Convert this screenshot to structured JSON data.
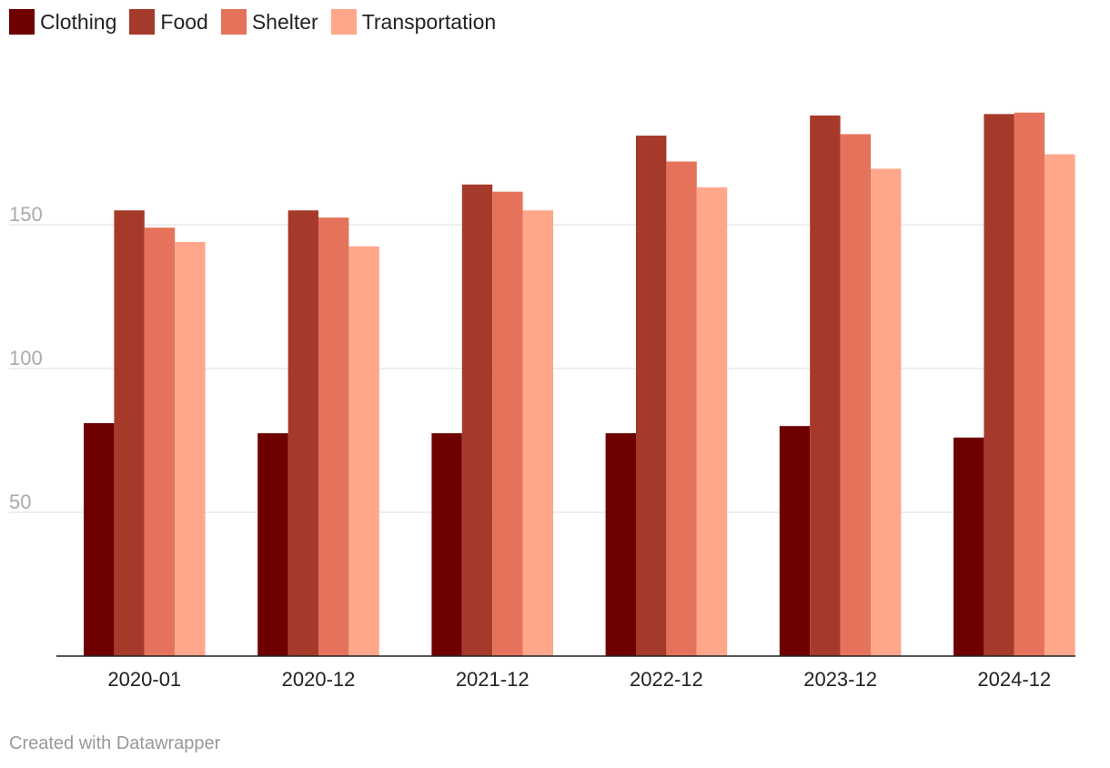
{
  "chart_data": {
    "type": "bar",
    "categories": [
      "2020-01",
      "2020-12",
      "2021-12",
      "2022-12",
      "2023-12",
      "2024-12"
    ],
    "series": [
      {
        "name": "Clothing",
        "color": "#6e0000",
        "values": [
          81,
          77.5,
          77.5,
          77.5,
          80,
          76
        ]
      },
      {
        "name": "Food",
        "color": "#a63a2a",
        "values": [
          155,
          155,
          164,
          181,
          188,
          188.5
        ]
      },
      {
        "name": "Shelter",
        "color": "#e5735b",
        "values": [
          149,
          152.5,
          161.5,
          172,
          181.5,
          189
        ]
      },
      {
        "name": "Transportation",
        "color": "#ffa68b",
        "values": [
          144,
          142.5,
          155,
          163,
          169.5,
          174.5
        ]
      }
    ],
    "y_ticks": [
      "50",
      "100",
      "150"
    ],
    "ylim": [
      0,
      200
    ],
    "grid": true,
    "legend_position": "top-left",
    "title": "",
    "xlabel": "",
    "ylabel": ""
  },
  "footer": {
    "credit": "Created with Datawrapper"
  }
}
